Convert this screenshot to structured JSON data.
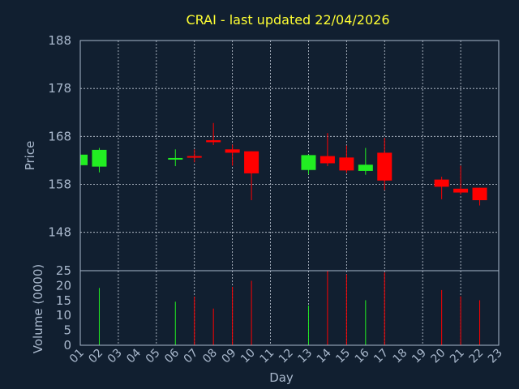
{
  "chart_data": {
    "type": "candlestick",
    "title": "CRAI - last updated 22/04/2026",
    "xlabel": "Day",
    "price_axis": {
      "ylabel": "Price",
      "ylim": [
        140,
        188
      ],
      "ticks": [
        148,
        158,
        168,
        178,
        188
      ]
    },
    "volume_axis": {
      "ylabel": "Volume (0000)",
      "ylim": [
        0,
        25
      ],
      "ticks": [
        0,
        5,
        10,
        15,
        20,
        25
      ]
    },
    "x_ticks": [
      "01",
      "02",
      "03",
      "04",
      "05",
      "06",
      "07",
      "08",
      "09",
      "10",
      "11",
      "12",
      "13",
      "14",
      "15",
      "16",
      "17",
      "18",
      "19",
      "20",
      "21",
      "22",
      "23"
    ],
    "grid": true,
    "colors": {
      "up": "#22ee22",
      "down": "#ff0000",
      "background": "#111f30",
      "title": "#ffff33",
      "axis_text": "#a9b8cc"
    },
    "candles": [
      {
        "day": 1,
        "open": 162.0,
        "high": 164.2,
        "low": 162.0,
        "close": 164.2,
        "volume": 0
      },
      {
        "day": 2,
        "open": 161.7,
        "high": 165.6,
        "low": 160.5,
        "close": 165.2,
        "volume": 19.2
      },
      {
        "day": 6,
        "open": 163.3,
        "high": 165.3,
        "low": 161.8,
        "close": 163.5,
        "volume": 14.6
      },
      {
        "day": 7,
        "open": 163.9,
        "high": 165.3,
        "low": 162.6,
        "close": 163.6,
        "volume": 16.3
      },
      {
        "day": 8,
        "open": 167.2,
        "high": 170.8,
        "low": 166.2,
        "close": 166.8,
        "volume": 12.3
      },
      {
        "day": 9,
        "open": 165.3,
        "high": 166.3,
        "low": 161.9,
        "close": 164.6,
        "volume": 19.6
      },
      {
        "day": 10,
        "open": 164.9,
        "high": 164.9,
        "low": 154.7,
        "close": 160.3,
        "volume": 21.6
      },
      {
        "day": 13,
        "open": 161.0,
        "high": 164.2,
        "low": 160.1,
        "close": 164.1,
        "volume": 13.3
      },
      {
        "day": 14,
        "open": 163.9,
        "high": 168.7,
        "low": 161.8,
        "close": 162.4,
        "volume": 25.0
      },
      {
        "day": 15,
        "open": 163.6,
        "high": 166.1,
        "low": 160.4,
        "close": 160.9,
        "volume": 23.8
      },
      {
        "day": 16,
        "open": 160.8,
        "high": 165.6,
        "low": 160.0,
        "close": 162.1,
        "volume": 15.1
      },
      {
        "day": 17,
        "open": 164.6,
        "high": 167.7,
        "low": 156.8,
        "close": 158.8,
        "volume": 24.4
      },
      {
        "day": 20,
        "open": 159.0,
        "high": 159.6,
        "low": 154.9,
        "close": 157.5,
        "volume": 18.5
      },
      {
        "day": 21,
        "open": 157.1,
        "high": 161.9,
        "low": 155.9,
        "close": 156.3,
        "volume": 16.4
      },
      {
        "day": 22,
        "open": 157.3,
        "high": 157.3,
        "low": 153.6,
        "close": 154.7,
        "volume": 15.1
      }
    ]
  }
}
